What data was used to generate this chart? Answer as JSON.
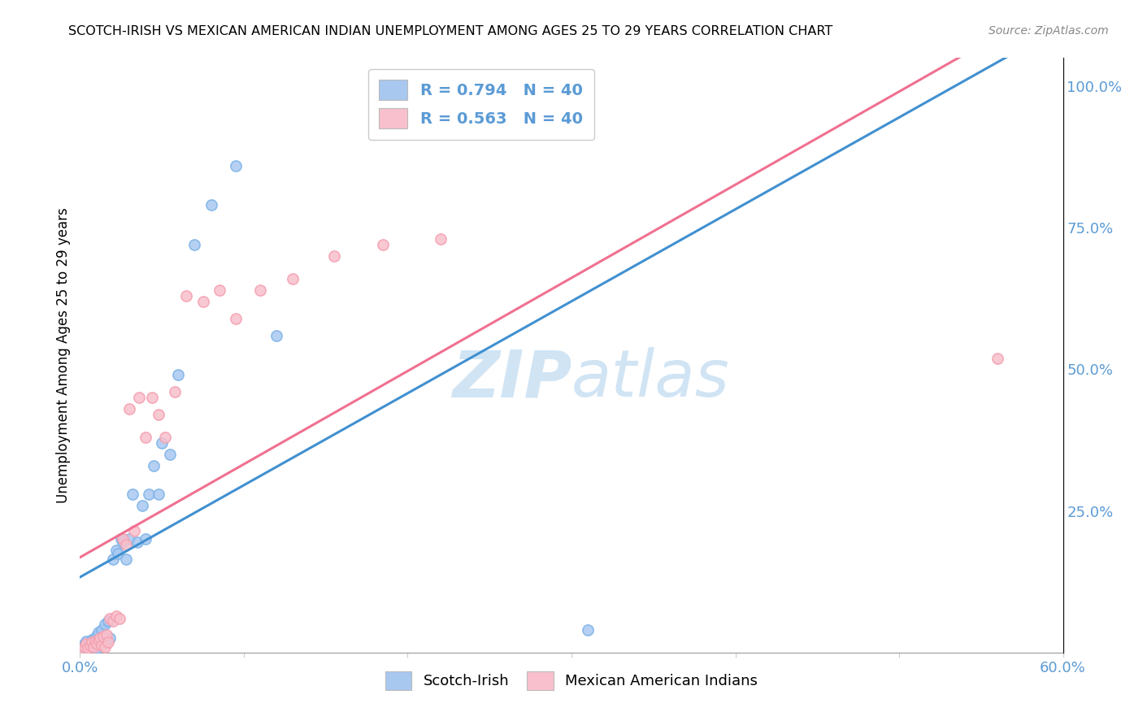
{
  "title": "SCOTCH-IRISH VS MEXICAN AMERICAN INDIAN UNEMPLOYMENT AMONG AGES 25 TO 29 YEARS CORRELATION CHART",
  "source": "Source: ZipAtlas.com",
  "ylabel": "Unemployment Among Ages 25 to 29 years",
  "xlim": [
    0,
    0.6
  ],
  "ylim": [
    0,
    1.05
  ],
  "xticks": [
    0.0,
    0.1,
    0.2,
    0.3,
    0.4,
    0.5,
    0.6
  ],
  "xticklabels": [
    "0.0%",
    "",
    "",
    "",
    "",
    "",
    "60.0%"
  ],
  "yticks_right": [
    0.0,
    0.25,
    0.5,
    0.75,
    1.0
  ],
  "yticklabels_right": [
    "",
    "25.0%",
    "50.0%",
    "75.0%",
    "100.0%"
  ],
  "blue_scatter_color": "#A8C8F0",
  "blue_scatter_edge": "#7EB3E8",
  "pink_scatter_color": "#F8C0CC",
  "pink_scatter_edge": "#F4A0B0",
  "blue_line_color": "#4090D0",
  "pink_line_color": "#F07090",
  "tick_color": "#5B9BD5",
  "watermark_color": "#D0E4F4",
  "scotch_irish_x": [
    0.002,
    0.003,
    0.004,
    0.005,
    0.006,
    0.007,
    0.008,
    0.009,
    0.01,
    0.01,
    0.011,
    0.012,
    0.013,
    0.014,
    0.015,
    0.016,
    0.017,
    0.018,
    0.02,
    0.022,
    0.023,
    0.025,
    0.026,
    0.028,
    0.03,
    0.032,
    0.035,
    0.038,
    0.04,
    0.042,
    0.045,
    0.048,
    0.05,
    0.055,
    0.06,
    0.07,
    0.08,
    0.095,
    0.12,
    0.31
  ],
  "scotch_irish_y": [
    0.01,
    0.015,
    0.02,
    0.012,
    0.018,
    0.022,
    0.016,
    0.025,
    0.008,
    0.03,
    0.035,
    0.015,
    0.04,
    0.018,
    0.05,
    0.02,
    0.055,
    0.025,
    0.165,
    0.18,
    0.175,
    0.2,
    0.195,
    0.165,
    0.2,
    0.28,
    0.195,
    0.26,
    0.2,
    0.28,
    0.33,
    0.28,
    0.37,
    0.35,
    0.49,
    0.72,
    0.79,
    0.86,
    0.56,
    0.04
  ],
  "mexican_x": [
    0.002,
    0.003,
    0.004,
    0.005,
    0.006,
    0.007,
    0.008,
    0.009,
    0.01,
    0.011,
    0.012,
    0.013,
    0.014,
    0.015,
    0.016,
    0.017,
    0.018,
    0.02,
    0.022,
    0.024,
    0.026,
    0.028,
    0.03,
    0.033,
    0.036,
    0.04,
    0.044,
    0.048,
    0.052,
    0.058,
    0.065,
    0.075,
    0.085,
    0.095,
    0.11,
    0.13,
    0.155,
    0.185,
    0.22,
    0.56
  ],
  "mexican_y": [
    0.005,
    0.01,
    0.015,
    0.008,
    0.012,
    0.018,
    0.01,
    0.02,
    0.015,
    0.022,
    0.025,
    0.012,
    0.028,
    0.01,
    0.032,
    0.018,
    0.06,
    0.055,
    0.065,
    0.06,
    0.2,
    0.19,
    0.43,
    0.215,
    0.45,
    0.38,
    0.45,
    0.42,
    0.38,
    0.46,
    0.63,
    0.62,
    0.64,
    0.59,
    0.64,
    0.66,
    0.7,
    0.72,
    0.73,
    0.52
  ],
  "blue_R": 0.794,
  "blue_N": 40,
  "pink_R": 0.563,
  "pink_N": 40
}
